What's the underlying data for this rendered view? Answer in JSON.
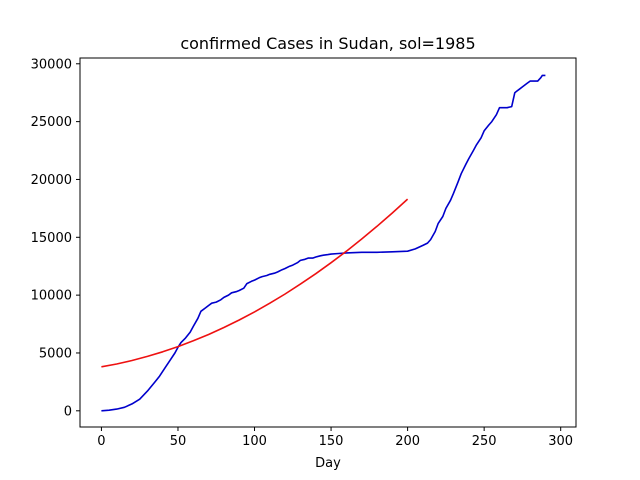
{
  "chart_data": {
    "type": "line",
    "title": "confirmed Cases in Sudan, sol=1985",
    "xlabel": "Day",
    "ylabel": "",
    "xlim": [
      -14,
      310
    ],
    "ylim": [
      -1400,
      30500
    ],
    "xticks": [
      0,
      50,
      100,
      150,
      200,
      250,
      300
    ],
    "yticks": [
      0,
      5000,
      10000,
      15000,
      20000,
      25000,
      30000
    ],
    "grid": false,
    "series": [
      {
        "color": "#0000cc",
        "x": [
          0,
          5,
          10,
          15,
          20,
          25,
          30,
          35,
          38,
          42,
          45,
          48,
          50,
          52,
          55,
          58,
          60,
          63,
          65,
          68,
          70,
          72,
          75,
          78,
          80,
          83,
          85,
          88,
          90,
          93,
          95,
          98,
          100,
          103,
          105,
          108,
          110,
          113,
          115,
          118,
          120,
          123,
          125,
          128,
          130,
          133,
          135,
          138,
          140,
          143,
          145,
          148,
          150,
          155,
          160,
          170,
          180,
          190,
          200,
          205,
          210,
          213,
          215,
          218,
          220,
          223,
          225,
          228,
          230,
          233,
          235,
          238,
          240,
          243,
          245,
          248,
          250,
          253,
          255,
          258,
          260,
          263,
          265,
          268,
          270,
          271,
          273,
          275,
          278,
          280,
          283,
          285,
          287,
          288,
          290
        ],
        "y": [
          0,
          50,
          150,
          300,
          600,
          1000,
          1700,
          2500,
          3000,
          3800,
          4400,
          5000,
          5500,
          5900,
          6300,
          6800,
          7300,
          8000,
          8600,
          8900,
          9100,
          9300,
          9400,
          9600,
          9800,
          10000,
          10200,
          10300,
          10400,
          10600,
          11000,
          11200,
          11300,
          11500,
          11600,
          11700,
          11800,
          11900,
          12000,
          12200,
          12300,
          12500,
          12600,
          12800,
          13000,
          13100,
          13200,
          13200,
          13300,
          13400,
          13450,
          13500,
          13550,
          13600,
          13650,
          13700,
          13700,
          13750,
          13800,
          14000,
          14300,
          14500,
          14800,
          15500,
          16200,
          16800,
          17500,
          18200,
          18800,
          19800,
          20500,
          21300,
          21800,
          22500,
          23000,
          23600,
          24200,
          24700,
          25000,
          25600,
          26200,
          26200,
          26200,
          26300,
          27500,
          27600,
          27800,
          28000,
          28300,
          28500,
          28500,
          28500,
          28800,
          29000,
          29000
        ]
      },
      {
        "color": "#ee1111",
        "x": [
          0,
          10,
          20,
          30,
          40,
          50,
          60,
          70,
          80,
          90,
          100,
          110,
          120,
          130,
          140,
          150,
          160,
          170,
          180,
          190,
          200
        ],
        "y": [
          3800,
          4050,
          4350,
          4700,
          5100,
          5550,
          6050,
          6600,
          7200,
          7850,
          8550,
          9300,
          10100,
          10950,
          11850,
          12800,
          13800,
          14850,
          15950,
          17100,
          18300
        ]
      }
    ]
  }
}
